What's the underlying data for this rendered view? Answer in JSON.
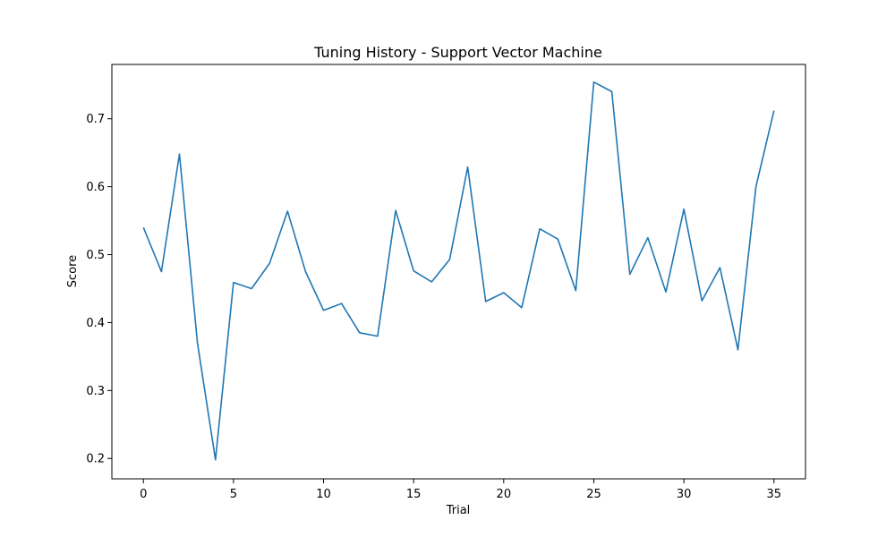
{
  "chart_data": {
    "type": "line",
    "title": "Tuning History - Support Vector Machine",
    "xlabel": "Trial",
    "ylabel": "Score",
    "xlim": [
      -1.75,
      36.75
    ],
    "ylim": [
      0.17,
      0.78
    ],
    "xticks": [
      0,
      5,
      10,
      15,
      20,
      25,
      30,
      35
    ],
    "yticks": [
      0.2,
      0.3,
      0.4,
      0.5,
      0.6,
      0.7
    ],
    "grid": false,
    "line_color": "#1f77b4",
    "series": [
      {
        "x": [
          0,
          1,
          2,
          3,
          4,
          5,
          6,
          7,
          8,
          9,
          10,
          11,
          12,
          13,
          14,
          15,
          16,
          17,
          18,
          19,
          20,
          21,
          22,
          23,
          24,
          25,
          26,
          27,
          28,
          29,
          30,
          31,
          32,
          33,
          34,
          35
        ],
        "values": [
          0.54,
          0.475,
          0.648,
          0.37,
          0.198,
          0.459,
          0.45,
          0.487,
          0.564,
          0.475,
          0.418,
          0.428,
          0.385,
          0.38,
          0.565,
          0.476,
          0.46,
          0.493,
          0.629,
          0.431,
          0.444,
          0.422,
          0.538,
          0.523,
          0.447,
          0.754,
          0.74,
          0.471,
          0.525,
          0.445,
          0.567,
          0.432,
          0.481,
          0.36,
          0.6,
          0.712
        ]
      }
    ]
  }
}
